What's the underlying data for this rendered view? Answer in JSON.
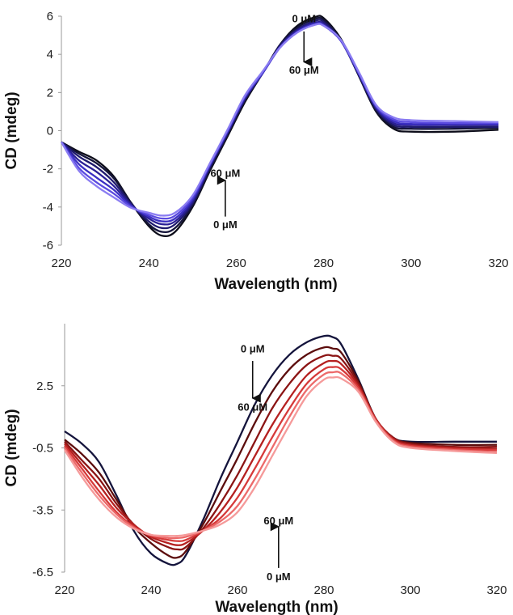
{
  "chart_data": [
    {
      "type": "line",
      "xlabel": "Wavelength (nm)",
      "ylabel": "CD (mdeg)",
      "xlim": [
        220,
        320
      ],
      "ylim": [
        -6,
        6
      ],
      "xticks": [
        220,
        240,
        260,
        280,
        300,
        320
      ],
      "yticks": [
        -6,
        -4,
        -2,
        0,
        2,
        4,
        6
      ],
      "x_tick_labels": [
        "220",
        "240",
        "260",
        "280",
        "300",
        "320"
      ],
      "y_tick_labels": [
        "-6",
        "-4",
        "-2",
        "0",
        "2",
        "4",
        "6"
      ],
      "grid": false,
      "legend": "none",
      "x": [
        220,
        224,
        228,
        232,
        236,
        240,
        243,
        246,
        250,
        254,
        258,
        262,
        266,
        270,
        274,
        278,
        280,
        284,
        288,
        292,
        296,
        300,
        310,
        320
      ],
      "series": [
        {
          "color": "#0d0d1a",
          "values": [
            -0.6,
            -1.1,
            -1.55,
            -2.4,
            -3.8,
            -5.0,
            -5.5,
            -5.3,
            -4.0,
            -2.1,
            -0.3,
            1.5,
            3.0,
            4.5,
            5.5,
            5.95,
            5.9,
            4.8,
            2.9,
            1.0,
            0.1,
            -0.05,
            -0.05,
            0.05
          ]
        },
        {
          "color": "#14143a",
          "values": [
            -0.6,
            -1.2,
            -1.7,
            -2.5,
            -3.8,
            -4.9,
            -5.3,
            -5.1,
            -3.9,
            -2.0,
            -0.2,
            1.6,
            3.0,
            4.5,
            5.4,
            5.85,
            5.8,
            4.75,
            2.9,
            1.05,
            0.2,
            0.1,
            0.1,
            0.15
          ]
        },
        {
          "color": "#1f1a6e",
          "values": [
            -0.6,
            -1.35,
            -1.9,
            -2.7,
            -3.85,
            -4.75,
            -5.1,
            -4.9,
            -3.8,
            -1.9,
            -0.15,
            1.65,
            3.0,
            4.45,
            5.3,
            5.75,
            5.7,
            4.7,
            2.95,
            1.15,
            0.3,
            0.2,
            0.2,
            0.2
          ]
        },
        {
          "color": "#2a1f96",
          "values": [
            -0.6,
            -1.55,
            -2.15,
            -2.9,
            -3.9,
            -4.6,
            -4.9,
            -4.75,
            -3.7,
            -1.85,
            -0.1,
            1.7,
            3.0,
            4.4,
            5.25,
            5.65,
            5.6,
            4.7,
            3.0,
            1.2,
            0.4,
            0.3,
            0.3,
            0.3
          ]
        },
        {
          "color": "#3b2fc2",
          "values": [
            -0.6,
            -1.75,
            -2.45,
            -3.1,
            -3.95,
            -4.5,
            -4.75,
            -4.6,
            -3.6,
            -1.8,
            -0.05,
            1.75,
            3.0,
            4.35,
            5.2,
            5.6,
            5.55,
            4.7,
            3.0,
            1.25,
            0.5,
            0.35,
            0.35,
            0.35
          ]
        },
        {
          "color": "#5b4be0",
          "values": [
            -0.6,
            -1.95,
            -2.7,
            -3.3,
            -4.0,
            -4.4,
            -4.6,
            -4.45,
            -3.5,
            -1.75,
            0.0,
            1.8,
            3.05,
            4.35,
            5.15,
            5.55,
            5.5,
            4.7,
            3.05,
            1.3,
            0.6,
            0.45,
            0.4,
            0.4
          ]
        },
        {
          "color": "#8a7cf2",
          "values": [
            -0.6,
            -2.1,
            -2.9,
            -3.5,
            -4.05,
            -4.3,
            -4.45,
            -4.3,
            -3.4,
            -1.7,
            0.05,
            1.85,
            3.1,
            4.35,
            5.15,
            5.55,
            5.5,
            4.75,
            3.1,
            1.35,
            0.7,
            0.55,
            0.5,
            0.45
          ]
        }
      ],
      "annotations": [
        {
          "text": "0 μM",
          "x": 275.5,
          "y": 5.9
        },
        {
          "text": "60 μM",
          "x": 275.5,
          "y": 3.2
        },
        {
          "text": "60 μM",
          "x": 257.5,
          "y": -2.2
        },
        {
          "text": "0 μM",
          "x": 257.5,
          "y": -4.9
        }
      ],
      "arrows": [
        {
          "direction": "down",
          "x": 275.5,
          "y_from": 5.2,
          "y_to": 3.6
        },
        {
          "direction": "up",
          "x": 257.5,
          "y_from": -4.5,
          "y_to": -2.6
        }
      ]
    },
    {
      "type": "line",
      "xlabel": "Wavelength (nm)",
      "ylabel": "CD (mdeg)",
      "xlim": [
        220,
        320
      ],
      "ylim": [
        -6.5,
        5.5
      ],
      "xticks": [
        220,
        240,
        260,
        280,
        300,
        320
      ],
      "yticks": [
        -6.5,
        -3.5,
        -0.5,
        2.5
      ],
      "x_tick_labels": [
        "220",
        "240",
        "260",
        "280",
        "300",
        "320"
      ],
      "y_tick_labels": [
        "-6.5",
        "-3.5",
        "-0.5",
        "2.5"
      ],
      "grid": false,
      "legend": "none",
      "x": [
        220,
        224,
        228,
        232,
        236,
        240,
        244,
        246,
        248,
        252,
        256,
        260,
        264,
        268,
        272,
        276,
        280,
        282,
        284,
        288,
        292,
        296,
        300,
        310,
        320
      ],
      "series": [
        {
          "color": "#14143c",
          "values": [
            0.3,
            -0.3,
            -1.2,
            -2.8,
            -4.5,
            -5.6,
            -6.1,
            -6.1,
            -5.7,
            -4.0,
            -2.0,
            -0.2,
            1.6,
            3.0,
            4.0,
            4.6,
            4.9,
            4.85,
            4.5,
            2.8,
            0.9,
            0.0,
            -0.2,
            -0.2,
            -0.2
          ]
        },
        {
          "color": "#5c0d0d",
          "values": [
            -0.1,
            -0.8,
            -1.7,
            -3.0,
            -4.3,
            -5.1,
            -5.7,
            -5.8,
            -5.5,
            -4.2,
            -2.6,
            -1.0,
            0.7,
            2.2,
            3.3,
            4.0,
            4.35,
            4.3,
            4.1,
            2.7,
            0.9,
            0.0,
            -0.25,
            -0.35,
            -0.35
          ]
        },
        {
          "color": "#8b1414",
          "values": [
            -0.2,
            -1.1,
            -2.0,
            -3.2,
            -4.2,
            -4.9,
            -5.3,
            -5.4,
            -5.3,
            -4.4,
            -3.2,
            -1.8,
            -0.2,
            1.4,
            2.6,
            3.5,
            3.95,
            3.95,
            3.8,
            2.6,
            0.9,
            0.0,
            -0.3,
            -0.45,
            -0.45
          ]
        },
        {
          "color": "#b52020",
          "values": [
            -0.3,
            -1.3,
            -2.3,
            -3.4,
            -4.2,
            -4.8,
            -5.1,
            -5.2,
            -5.1,
            -4.5,
            -3.6,
            -2.4,
            -0.9,
            0.6,
            1.9,
            3.0,
            3.6,
            3.7,
            3.55,
            2.5,
            0.9,
            -0.05,
            -0.35,
            -0.5,
            -0.55
          ]
        },
        {
          "color": "#d63a3a",
          "values": [
            -0.4,
            -1.5,
            -2.6,
            -3.6,
            -4.3,
            -4.75,
            -4.95,
            -5.0,
            -4.95,
            -4.5,
            -3.9,
            -2.9,
            -1.5,
            0.0,
            1.4,
            2.6,
            3.3,
            3.4,
            3.3,
            2.4,
            0.85,
            -0.1,
            -0.4,
            -0.55,
            -0.6
          ]
        },
        {
          "color": "#ec6a6a",
          "values": [
            -0.5,
            -1.7,
            -2.8,
            -3.7,
            -4.35,
            -4.7,
            -4.85,
            -4.85,
            -4.8,
            -4.5,
            -4.05,
            -3.3,
            -2.0,
            -0.5,
            1.0,
            2.3,
            3.05,
            3.15,
            3.1,
            2.3,
            0.8,
            -0.15,
            -0.45,
            -0.6,
            -0.7
          ]
        },
        {
          "color": "#f59a9a",
          "values": [
            -0.6,
            -1.9,
            -3.0,
            -3.85,
            -4.4,
            -4.7,
            -4.75,
            -4.75,
            -4.7,
            -4.5,
            -4.2,
            -3.6,
            -2.4,
            -0.9,
            0.6,
            2.0,
            2.8,
            2.9,
            2.85,
            2.2,
            0.75,
            -0.2,
            -0.5,
            -0.65,
            -0.75
          ]
        }
      ],
      "annotations": [
        {
          "text": "0 μM",
          "x": 263.5,
          "y": 4.3
        },
        {
          "text": "60 μM",
          "x": 263.5,
          "y": 1.5
        },
        {
          "text": "60 μM",
          "x": 269.5,
          "y": -4.0
        },
        {
          "text": "0 μM",
          "x": 269.5,
          "y": -6.7
        }
      ],
      "arrows": [
        {
          "direction": "down",
          "x": 263.5,
          "y_from": 3.7,
          "y_to": 1.9
        },
        {
          "direction": "up",
          "x": 269.5,
          "y_from": -6.3,
          "y_to": -4.3
        }
      ]
    }
  ]
}
